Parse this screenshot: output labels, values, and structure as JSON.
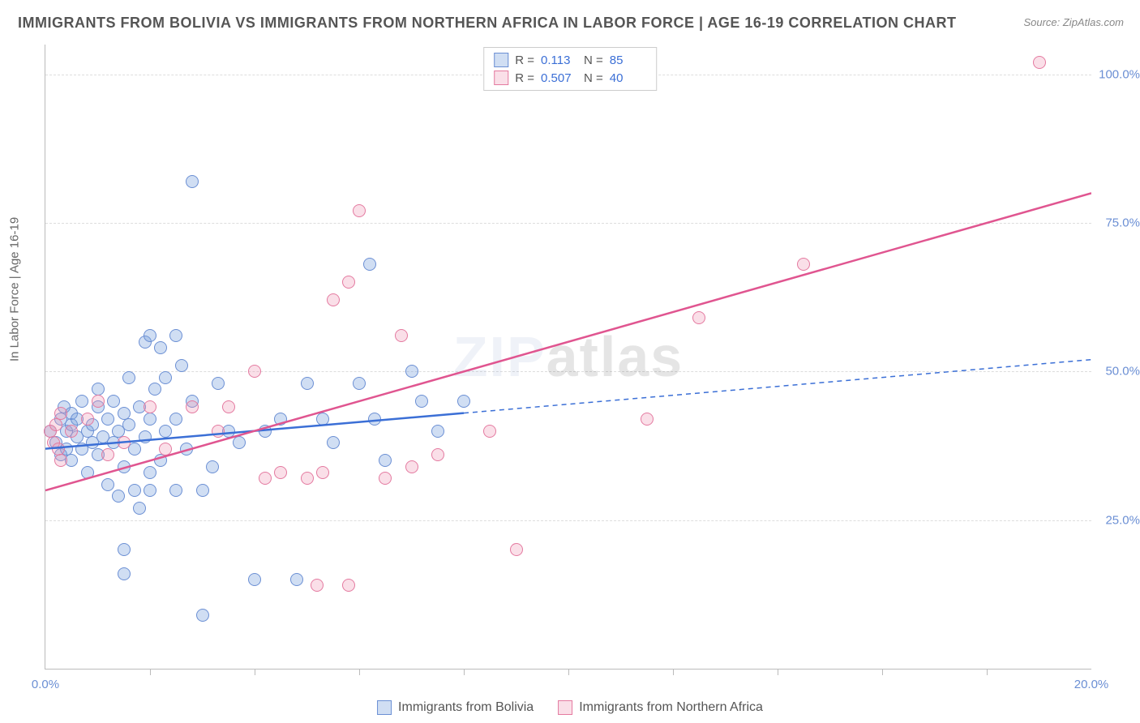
{
  "title": "IMMIGRANTS FROM BOLIVIA VS IMMIGRANTS FROM NORTHERN AFRICA IN LABOR FORCE | AGE 16-19 CORRELATION CHART",
  "source": "Source: ZipAtlas.com",
  "ylabel": "In Labor Force | Age 16-19",
  "watermark_a": "ZIP",
  "watermark_b": "atlas",
  "chart": {
    "type": "scatter",
    "xlim": [
      0,
      20
    ],
    "ylim": [
      0,
      105
    ],
    "y_ticks": [
      25,
      50,
      75,
      100
    ],
    "y_tick_labels": [
      "25.0%",
      "50.0%",
      "75.0%",
      "100.0%"
    ],
    "x_ticks": [
      0,
      20
    ],
    "x_tick_labels": [
      "0.0%",
      "20.0%"
    ],
    "x_minor_ticks": [
      2,
      4,
      6,
      8,
      10,
      12,
      14,
      16,
      18
    ],
    "grid_color": "#dddddd",
    "series": [
      {
        "name": "Immigrants from Bolivia",
        "R_label": "R =",
        "R": "0.113",
        "N_label": "N =",
        "N": "85",
        "marker_fill": "rgba(120,160,220,0.35)",
        "marker_stroke": "#6b8fd4",
        "marker_radius": 7,
        "line_color": "#3b6fd6",
        "line_solid_to_x": 8.0,
        "trend": {
          "x1": 0,
          "y1": 37,
          "x2": 20,
          "y2": 52
        },
        "points": [
          [
            0.1,
            40
          ],
          [
            0.2,
            38
          ],
          [
            0.3,
            42
          ],
          [
            0.3,
            36
          ],
          [
            0.35,
            44
          ],
          [
            0.4,
            40
          ],
          [
            0.4,
            37
          ],
          [
            0.5,
            41
          ],
          [
            0.5,
            35
          ],
          [
            0.5,
            43
          ],
          [
            0.6,
            39
          ],
          [
            0.6,
            42
          ],
          [
            0.7,
            37
          ],
          [
            0.7,
            45
          ],
          [
            0.8,
            40
          ],
          [
            0.8,
            33
          ],
          [
            0.9,
            41
          ],
          [
            0.9,
            38
          ],
          [
            1.0,
            44
          ],
          [
            1.0,
            36
          ],
          [
            1.0,
            47
          ],
          [
            1.1,
            39
          ],
          [
            1.2,
            31
          ],
          [
            1.2,
            42
          ],
          [
            1.3,
            38
          ],
          [
            1.3,
            45
          ],
          [
            1.4,
            29
          ],
          [
            1.4,
            40
          ],
          [
            1.5,
            43
          ],
          [
            1.5,
            34
          ],
          [
            1.5,
            20
          ],
          [
            1.5,
            16
          ],
          [
            1.6,
            41
          ],
          [
            1.6,
            49
          ],
          [
            1.7,
            37
          ],
          [
            1.7,
            30
          ],
          [
            1.8,
            44
          ],
          [
            1.8,
            27
          ],
          [
            1.9,
            39
          ],
          [
            1.9,
            55
          ],
          [
            2.0,
            33
          ],
          [
            2.0,
            42
          ],
          [
            2.0,
            56
          ],
          [
            2.0,
            30
          ],
          [
            2.1,
            47
          ],
          [
            2.2,
            35
          ],
          [
            2.2,
            54
          ],
          [
            2.3,
            40
          ],
          [
            2.3,
            49
          ],
          [
            2.5,
            56
          ],
          [
            2.5,
            42
          ],
          [
            2.5,
            30
          ],
          [
            2.6,
            51
          ],
          [
            2.7,
            37
          ],
          [
            2.8,
            45
          ],
          [
            2.8,
            82
          ],
          [
            3.0,
            30
          ],
          [
            3.0,
            9
          ],
          [
            3.2,
            34
          ],
          [
            3.3,
            48
          ],
          [
            3.5,
            40
          ],
          [
            3.7,
            38
          ],
          [
            4.0,
            15
          ],
          [
            4.2,
            40
          ],
          [
            4.5,
            42
          ],
          [
            4.8,
            15
          ],
          [
            5.0,
            48
          ],
          [
            5.3,
            42
          ],
          [
            5.5,
            38
          ],
          [
            6.0,
            48
          ],
          [
            6.2,
            68
          ],
          [
            6.3,
            42
          ],
          [
            6.5,
            35
          ],
          [
            7.0,
            50
          ],
          [
            7.2,
            45
          ],
          [
            7.5,
            40
          ],
          [
            8.0,
            45
          ]
        ]
      },
      {
        "name": "Immigrants from Northern Africa",
        "R_label": "R =",
        "R": "0.507",
        "N_label": "N =",
        "N": "40",
        "marker_fill": "rgba(240,150,180,0.3)",
        "marker_stroke": "#e47aa0",
        "marker_radius": 7,
        "line_color": "#e05590",
        "line_solid_to_x": 20.0,
        "trend": {
          "x1": 0,
          "y1": 30,
          "x2": 20,
          "y2": 80
        },
        "points": [
          [
            0.1,
            40
          ],
          [
            0.15,
            38
          ],
          [
            0.2,
            41
          ],
          [
            0.25,
            37
          ],
          [
            0.3,
            43
          ],
          [
            0.3,
            35
          ],
          [
            0.5,
            40
          ],
          [
            0.8,
            42
          ],
          [
            1.0,
            45
          ],
          [
            1.2,
            36
          ],
          [
            1.5,
            38
          ],
          [
            2.0,
            44
          ],
          [
            2.3,
            37
          ],
          [
            2.8,
            44
          ],
          [
            3.3,
            40
          ],
          [
            3.5,
            44
          ],
          [
            4.0,
            50
          ],
          [
            4.2,
            32
          ],
          [
            4.5,
            33
          ],
          [
            5.0,
            32
          ],
          [
            5.2,
            14
          ],
          [
            5.3,
            33
          ],
          [
            5.5,
            62
          ],
          [
            5.8,
            14
          ],
          [
            5.8,
            65
          ],
          [
            6.0,
            77
          ],
          [
            6.5,
            32
          ],
          [
            6.8,
            56
          ],
          [
            7.0,
            34
          ],
          [
            7.5,
            36
          ],
          [
            8.5,
            40
          ],
          [
            9.0,
            20
          ],
          [
            11.5,
            42
          ],
          [
            12.5,
            59
          ],
          [
            14.5,
            68
          ],
          [
            19.0,
            102
          ]
        ]
      }
    ]
  }
}
